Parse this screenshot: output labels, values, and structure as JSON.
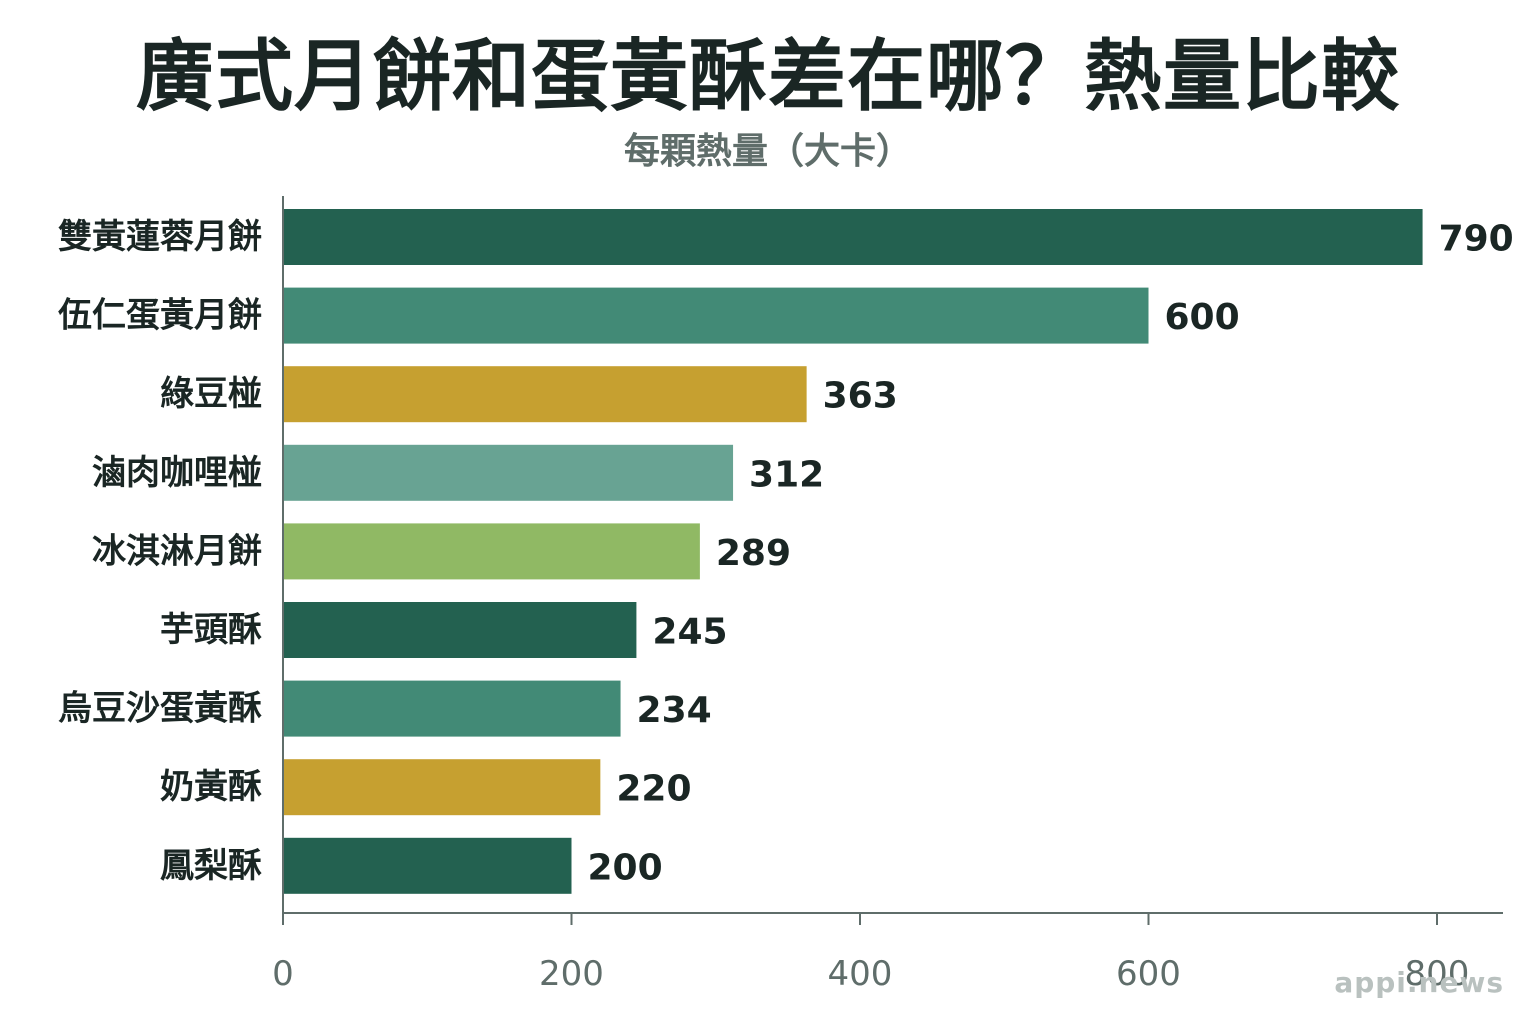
{
  "title": "廣式月餅和蛋黃酥差在哪？熱量比較",
  "subtitle": "每顆熱量（大卡）",
  "watermark": "appi.news",
  "colors": {
    "dark_green": "#236150",
    "teal": "#428a76",
    "gold": "#c6a030",
    "light_teal": "#68a393",
    "lime": "#90b964"
  },
  "chart_data": {
    "type": "bar",
    "orientation": "horizontal",
    "categories": [
      "雙黃蓮蓉月餅",
      "伍仁蛋黃月餅",
      "綠豆椪",
      "滷肉咖哩椪",
      "冰淇淋月餅",
      "芋頭酥",
      "烏豆沙蛋黃酥",
      "奶黃酥",
      "鳳梨酥"
    ],
    "values": [
      790,
      600,
      363,
      312,
      289,
      245,
      234,
      220,
      200
    ],
    "value_labels": [
      "790",
      "600",
      "363",
      "312",
      "289",
      "245",
      "234",
      "220",
      "200"
    ],
    "bar_colors": [
      "#236150",
      "#428a76",
      "#c6a030",
      "#68a393",
      "#90b964",
      "#236150",
      "#428a76",
      "#c6a030",
      "#236150"
    ],
    "xlim": [
      0,
      850
    ],
    "xticks": [
      0,
      200,
      400,
      600,
      800
    ],
    "xtick_labels": [
      "0",
      "200",
      "400",
      "600",
      "800"
    ],
    "grid": false,
    "legend": "none"
  }
}
